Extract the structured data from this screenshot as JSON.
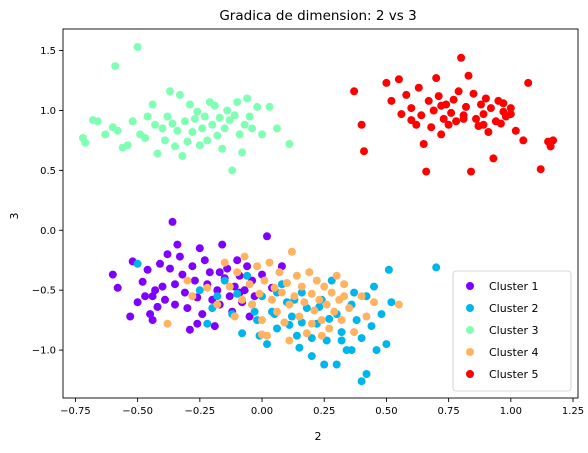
{
  "chart_data": {
    "type": "scatter",
    "title": "Gradica de dimension: 2 vs 3",
    "xlabel": "2",
    "ylabel": "3",
    "xlim": [
      -0.8,
      1.27
    ],
    "ylim": [
      -1.4,
      1.68
    ],
    "xticks": [
      -0.75,
      -0.5,
      -0.25,
      0.0,
      0.25,
      0.5,
      0.75,
      1.0,
      1.25
    ],
    "xtick_labels": [
      "−0.75",
      "−0.50",
      "−0.25",
      "0.00",
      "0.25",
      "0.50",
      "0.75",
      "1.00",
      "1.25"
    ],
    "yticks": [
      -1.0,
      -0.5,
      0.0,
      0.5,
      1.0,
      1.5
    ],
    "ytick_labels": [
      "−1.0",
      "−0.5",
      "0.0",
      "0.5",
      "1.0",
      "1.5"
    ],
    "grid": false,
    "legend_position": "bottom-right",
    "series": [
      {
        "name": "Cluster 1",
        "color": "#8000ff",
        "points": [
          [
            -0.6,
            -0.37
          ],
          [
            -0.58,
            -0.48
          ],
          [
            -0.52,
            -0.26
          ],
          [
            -0.5,
            -0.6
          ],
          [
            -0.48,
            -0.43
          ],
          [
            -0.47,
            -0.55
          ],
          [
            -0.46,
            -0.33
          ],
          [
            -0.45,
            -0.7
          ],
          [
            -0.44,
            -0.75
          ],
          [
            -0.43,
            -0.5
          ],
          [
            -0.42,
            -0.64
          ],
          [
            -0.41,
            -0.28
          ],
          [
            -0.4,
            -0.47
          ],
          [
            -0.39,
            -0.58
          ],
          [
            -0.38,
            -0.2
          ],
          [
            -0.37,
            -0.32
          ],
          [
            -0.36,
            0.07
          ],
          [
            -0.35,
            -0.45
          ],
          [
            -0.34,
            -0.12
          ],
          [
            -0.33,
            -0.22
          ],
          [
            -0.32,
            -0.37
          ],
          [
            -0.31,
            -0.52
          ],
          [
            -0.3,
            -0.65
          ],
          [
            -0.29,
            -0.83
          ],
          [
            -0.28,
            -0.3
          ],
          [
            -0.27,
            -0.42
          ],
          [
            -0.26,
            -0.56
          ],
          [
            -0.25,
            -0.15
          ],
          [
            -0.24,
            -0.7
          ],
          [
            -0.23,
            -0.25
          ],
          [
            -0.22,
            -0.45
          ],
          [
            -0.21,
            -0.35
          ],
          [
            -0.2,
            -0.58
          ],
          [
            -0.19,
            -0.8
          ],
          [
            -0.18,
            -0.5
          ],
          [
            -0.17,
            -0.62
          ],
          [
            -0.16,
            -0.12
          ],
          [
            -0.15,
            -0.4
          ],
          [
            -0.14,
            -0.32
          ],
          [
            -0.13,
            -0.55
          ],
          [
            -0.12,
            -0.68
          ],
          [
            -0.11,
            -0.47
          ],
          [
            -0.1,
            -0.25
          ],
          [
            -0.09,
            -0.38
          ],
          [
            -0.08,
            -0.6
          ],
          [
            -0.07,
            -0.5
          ],
          [
            -0.06,
            -0.3
          ],
          [
            -0.05,
            -0.72
          ],
          [
            -0.04,
            -0.42
          ],
          [
            -0.03,
            -0.55
          ],
          [
            0.0,
            -0.37
          ],
          [
            0.02,
            -0.05
          ],
          [
            0.04,
            -0.48
          ],
          [
            0.08,
            -0.3
          ],
          [
            -0.53,
            -0.72
          ],
          [
            -0.44,
            -0.55
          ],
          [
            -0.35,
            -0.62
          ],
          [
            -0.26,
            -0.78
          ],
          [
            -0.17,
            -0.35
          ],
          [
            -0.09,
            -0.52
          ]
        ]
      },
      {
        "name": "Cluster 2",
        "color": "#00b5eb",
        "points": [
          [
            -0.5,
            -0.28
          ],
          [
            -0.25,
            -0.5
          ],
          [
            -0.22,
            -0.78
          ],
          [
            -0.2,
            -0.65
          ],
          [
            -0.18,
            -0.55
          ],
          [
            -0.15,
            -0.42
          ],
          [
            -0.12,
            -0.7
          ],
          [
            -0.1,
            -0.53
          ],
          [
            -0.08,
            -0.86
          ],
          [
            -0.06,
            -0.38
          ],
          [
            -0.04,
            -0.62
          ],
          [
            -0.02,
            -0.75
          ],
          [
            0.0,
            -0.55
          ],
          [
            0.02,
            -0.95
          ],
          [
            0.04,
            -0.68
          ],
          [
            0.06,
            -0.82
          ],
          [
            0.08,
            -0.45
          ],
          [
            0.1,
            -0.6
          ],
          [
            0.12,
            -0.72
          ],
          [
            0.14,
            -0.88
          ],
          [
            0.16,
            -0.52
          ],
          [
            0.18,
            -0.65
          ],
          [
            0.2,
            -1.05
          ],
          [
            0.22,
            -0.78
          ],
          [
            0.24,
            -0.58
          ],
          [
            0.26,
            -0.92
          ],
          [
            0.28,
            -0.42
          ],
          [
            0.3,
            -0.7
          ],
          [
            0.32,
            -0.85
          ],
          [
            0.34,
            -1.0
          ],
          [
            0.36,
            -0.62
          ],
          [
            0.38,
            -0.75
          ],
          [
            0.4,
            -0.9
          ],
          [
            0.42,
            -0.55
          ],
          [
            0.44,
            -0.8
          ],
          [
            0.46,
            -1.0
          ],
          [
            0.48,
            -0.7
          ],
          [
            0.5,
            -0.95
          ],
          [
            0.52,
            -0.6
          ],
          [
            0.7,
            -0.31
          ],
          [
            0.51,
            -0.33
          ],
          [
            0.3,
            -1.12
          ],
          [
            0.4,
            -1.26
          ],
          [
            0.36,
            -1.0
          ],
          [
            0.25,
            -1.12
          ],
          [
            0.42,
            -1.2
          ],
          [
            0.2,
            -0.9
          ],
          [
            0.11,
            -0.79
          ],
          [
            0.05,
            -0.7
          ],
          [
            -0.01,
            -0.88
          ],
          [
            0.15,
            -0.98
          ],
          [
            0.32,
            -0.92
          ],
          [
            0.27,
            -0.74
          ],
          [
            0.45,
            -0.47
          ],
          [
            0.37,
            -0.52
          ],
          [
            0.23,
            -0.64
          ],
          [
            0.13,
            -0.58
          ],
          [
            0.06,
            -0.52
          ],
          [
            -0.03,
            -0.68
          ],
          [
            0.16,
            -0.77
          ]
        ]
      },
      {
        "name": "Cluster 3",
        "color": "#80ffb4",
        "points": [
          [
            -0.72,
            0.77
          ],
          [
            -0.71,
            0.73
          ],
          [
            -0.68,
            0.92
          ],
          [
            -0.66,
            0.91
          ],
          [
            -0.63,
            0.8
          ],
          [
            -0.6,
            0.86
          ],
          [
            -0.59,
            1.37
          ],
          [
            -0.58,
            0.83
          ],
          [
            -0.56,
            0.69
          ],
          [
            -0.54,
            0.71
          ],
          [
            -0.52,
            0.91
          ],
          [
            -0.5,
            1.53
          ],
          [
            -0.49,
            0.8
          ],
          [
            -0.47,
            0.77
          ],
          [
            -0.46,
            0.95
          ],
          [
            -0.44,
            1.05
          ],
          [
            -0.43,
            0.88
          ],
          [
            -0.42,
            0.64
          ],
          [
            -0.4,
            0.85
          ],
          [
            -0.39,
            0.75
          ],
          [
            -0.38,
            0.95
          ],
          [
            -0.37,
            1.16
          ],
          [
            -0.36,
            0.89
          ],
          [
            -0.35,
            0.7
          ],
          [
            -0.34,
            0.83
          ],
          [
            -0.33,
            1.13
          ],
          [
            -0.32,
            0.62
          ],
          [
            -0.31,
            0.91
          ],
          [
            -0.3,
            0.74
          ],
          [
            -0.29,
            1.05
          ],
          [
            -0.28,
            0.82
          ],
          [
            -0.27,
            0.93
          ],
          [
            -0.26,
            0.99
          ],
          [
            -0.25,
            0.71
          ],
          [
            -0.24,
            0.85
          ],
          [
            -0.23,
            0.95
          ],
          [
            -0.22,
            0.75
          ],
          [
            -0.21,
            1.07
          ],
          [
            -0.2,
            0.88
          ],
          [
            -0.19,
            1.04
          ],
          [
            -0.18,
            0.79
          ],
          [
            -0.17,
            0.94
          ],
          [
            -0.16,
            0.68
          ],
          [
            -0.15,
            0.85
          ],
          [
            -0.14,
            1.0
          ],
          [
            -0.13,
            0.92
          ],
          [
            -0.12,
            0.5
          ],
          [
            -0.11,
            0.96
          ],
          [
            -0.1,
            1.07
          ],
          [
            -0.09,
            0.8
          ],
          [
            -0.08,
            0.65
          ],
          [
            -0.07,
            0.88
          ],
          [
            -0.06,
            1.1
          ],
          [
            -0.05,
            0.95
          ],
          [
            -0.04,
            0.85
          ],
          [
            -0.02,
            1.03
          ],
          [
            0.0,
            0.8
          ],
          [
            0.03,
            1.03
          ],
          [
            0.06,
            0.85
          ],
          [
            0.11,
            0.72
          ]
        ]
      },
      {
        "name": "Cluster 4",
        "color": "#ffb360",
        "points": [
          [
            -0.38,
            -0.78
          ],
          [
            -0.28,
            -0.55
          ],
          [
            -0.22,
            -0.48
          ],
          [
            -0.18,
            -0.62
          ],
          [
            -0.15,
            -0.27
          ],
          [
            -0.13,
            -0.47
          ],
          [
            -0.11,
            -0.72
          ],
          [
            -0.1,
            -0.35
          ],
          [
            -0.08,
            -0.58
          ],
          [
            -0.07,
            -0.22
          ],
          [
            -0.05,
            -0.45
          ],
          [
            -0.04,
            -0.62
          ],
          [
            -0.02,
            -0.3
          ],
          [
            -0.01,
            -0.53
          ],
          [
            0.0,
            -0.75
          ],
          [
            0.01,
            -0.42
          ],
          [
            0.02,
            -0.88
          ],
          [
            0.03,
            -0.27
          ],
          [
            0.04,
            -0.58
          ],
          [
            0.05,
            -0.48
          ],
          [
            0.06,
            -0.68
          ],
          [
            0.07,
            -0.35
          ],
          [
            0.08,
            -0.52
          ],
          [
            0.09,
            -0.77
          ],
          [
            0.1,
            -0.44
          ],
          [
            0.11,
            -0.62
          ],
          [
            0.12,
            -0.18
          ],
          [
            0.13,
            -0.55
          ],
          [
            0.14,
            -0.38
          ],
          [
            0.15,
            -0.72
          ],
          [
            0.16,
            -0.47
          ],
          [
            0.17,
            -0.6
          ],
          [
            0.18,
            -0.86
          ],
          [
            0.19,
            -0.35
          ],
          [
            0.2,
            -0.53
          ],
          [
            0.21,
            -0.67
          ],
          [
            0.22,
            -0.42
          ],
          [
            0.23,
            -0.58
          ],
          [
            0.24,
            -0.75
          ],
          [
            0.25,
            -0.47
          ],
          [
            0.26,
            -0.62
          ],
          [
            0.27,
            -0.82
          ],
          [
            0.28,
            -0.52
          ],
          [
            0.29,
            -0.68
          ],
          [
            0.3,
            -0.38
          ],
          [
            0.31,
            -0.58
          ],
          [
            0.32,
            -0.75
          ],
          [
            0.33,
            -0.45
          ],
          [
            0.35,
            -0.65
          ],
          [
            0.37,
            -0.85
          ],
          [
            0.4,
            -0.55
          ],
          [
            0.42,
            -0.72
          ],
          [
            0.45,
            -0.6
          ],
          [
            0.55,
            -0.62
          ],
          [
            -0.3,
            -0.42
          ],
          [
            0.11,
            -0.92
          ],
          [
            0.2,
            -0.78
          ],
          [
            0.33,
            -0.55
          ],
          [
            0.0,
            -0.87
          ],
          [
            0.24,
            -0.88
          ]
        ]
      },
      {
        "name": "Cluster 5",
        "color": "#ff0000",
        "points": [
          [
            0.37,
            1.16
          ],
          [
            0.4,
            0.88
          ],
          [
            0.41,
            0.66
          ],
          [
            0.5,
            1.23
          ],
          [
            0.52,
            1.08
          ],
          [
            0.55,
            1.26
          ],
          [
            0.56,
            0.97
          ],
          [
            0.58,
            1.13
          ],
          [
            0.6,
            1.02
          ],
          [
            0.62,
            0.88
          ],
          [
            0.63,
            1.19
          ],
          [
            0.64,
            0.96
          ],
          [
            0.66,
            0.49
          ],
          [
            0.67,
            1.08
          ],
          [
            0.68,
            0.86
          ],
          [
            0.69,
            1.0
          ],
          [
            0.7,
            1.27
          ],
          [
            0.71,
            1.12
          ],
          [
            0.72,
            0.8
          ],
          [
            0.73,
            0.93
          ],
          [
            0.74,
            1.05
          ],
          [
            0.75,
            0.88
          ],
          [
            0.76,
            0.98
          ],
          [
            0.77,
            1.09
          ],
          [
            0.78,
            0.91
          ],
          [
            0.79,
            1.16
          ],
          [
            0.8,
            1.44
          ],
          [
            0.81,
            0.96
          ],
          [
            0.82,
            1.03
          ],
          [
            0.83,
            1.29
          ],
          [
            0.84,
            0.49
          ],
          [
            0.85,
            1.14
          ],
          [
            0.86,
            0.93
          ],
          [
            0.87,
            0.87
          ],
          [
            0.88,
            1.05
          ],
          [
            0.89,
            0.97
          ],
          [
            0.9,
            1.1
          ],
          [
            0.91,
            0.82
          ],
          [
            0.92,
            1.02
          ],
          [
            0.93,
            0.6
          ],
          [
            0.94,
            0.91
          ],
          [
            0.95,
            1.08
          ],
          [
            0.96,
            0.89
          ],
          [
            0.97,
            0.99
          ],
          [
            0.98,
            0.95
          ],
          [
            1.0,
            1.02
          ],
          [
            1.02,
            0.83
          ],
          [
            1.05,
            0.75
          ],
          [
            1.07,
            1.23
          ],
          [
            1.12,
            0.51
          ],
          [
            1.15,
            0.74
          ],
          [
            1.16,
            0.7
          ],
          [
            1.17,
            0.75
          ],
          [
            0.65,
            0.72
          ],
          [
            0.72,
            1.04
          ],
          [
            0.81,
            0.93
          ],
          [
            0.89,
            0.88
          ],
          [
            0.97,
            1.06
          ],
          [
            1.0,
            0.97
          ],
          [
            0.6,
            0.92
          ]
        ]
      }
    ]
  }
}
